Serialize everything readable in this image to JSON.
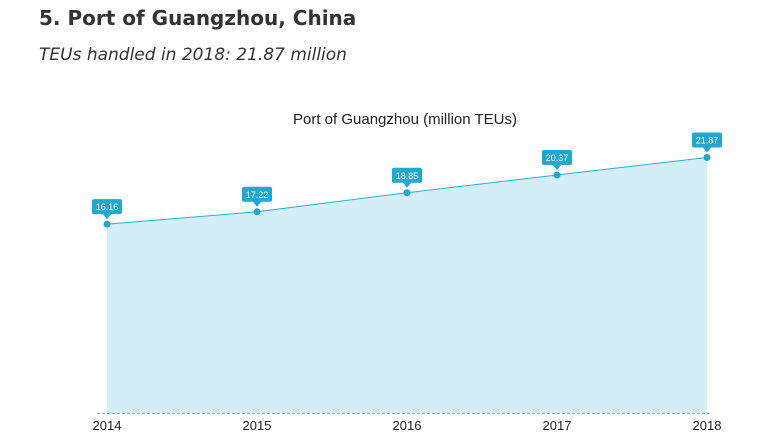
{
  "header": {
    "title": "5. Port of Guangzhou, China",
    "subtitle": "TEUs handled in 2018: 21.87 million"
  },
  "colors": {
    "area_fill": "#d3eef7",
    "line": "#2bb0d4",
    "marker": "#1fa9d1",
    "label_bg": "#1fa9d1",
    "baseline": "#9ab0ba"
  },
  "chart_data": {
    "type": "area",
    "title": "Port of Guangzhou (million TEUs)",
    "categories": [
      "2014",
      "2015",
      "2016",
      "2017",
      "2018"
    ],
    "series": [
      {
        "values": [
          16.16,
          17.22,
          18.85,
          20.37,
          21.87
        ]
      }
    ],
    "data_labels": [
      "16.16",
      "17.22",
      "18.85",
      "20.37",
      "21.87"
    ],
    "xlabel": "",
    "ylabel": "",
    "ylim": [
      0,
      28.5
    ],
    "grid": false,
    "legend": false
  }
}
